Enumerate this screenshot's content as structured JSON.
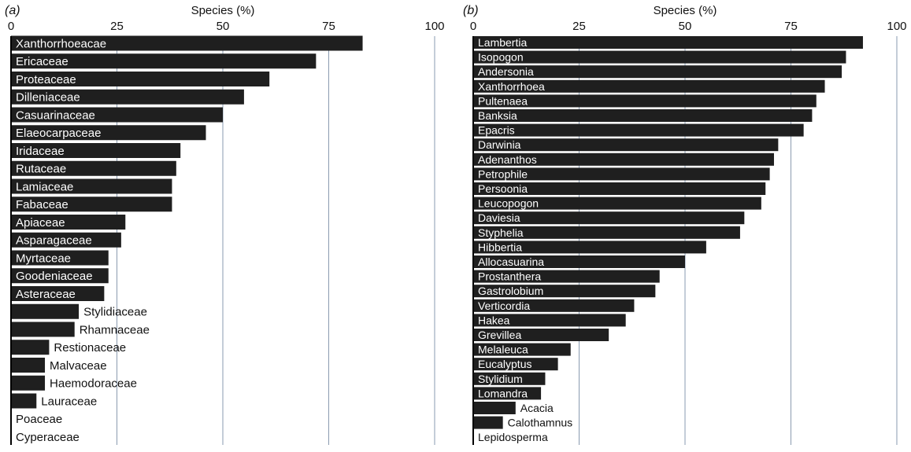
{
  "chart_data": [
    {
      "type": "bar",
      "orientation": "horizontal",
      "panel_label": "(a)",
      "xlabel": "Species (%)",
      "xlim": [
        0,
        100
      ],
      "xticks": [
        "0",
        "25",
        "50",
        "75",
        "100"
      ],
      "grid": "vertical",
      "categories": [
        "Xanthorrhoeacae",
        "Ericaceae",
        "Proteaceae",
        "Dilleniaceae",
        "Casuarinaceae",
        "Elaeocarpaceae",
        "Iridaceae",
        "Rutaceae",
        "Lamiaceae",
        "Fabaceae",
        "Apiaceae",
        "Asparagaceae",
        "Myrtaceae",
        "Goodeniaceae",
        "Asteraceae",
        "Stylidiaceae",
        "Rhamnaceae",
        "Restionaceae",
        "Malvaceae",
        "Haemodoraceae",
        "Lauraceae",
        "Poaceae",
        "Cyperaceae"
      ],
      "values": [
        83,
        72,
        61,
        55,
        50,
        46,
        40,
        39,
        38,
        38,
        27,
        26,
        23,
        23,
        22,
        16,
        15,
        9,
        8,
        8,
        6,
        0,
        0
      ],
      "colors": {
        "bar": "#1f1f1f",
        "grid": "#8a9bb0",
        "axis": "#000000"
      }
    },
    {
      "type": "bar",
      "orientation": "horizontal",
      "panel_label": "(b)",
      "xlabel": "Species (%)",
      "xlim": [
        0,
        100
      ],
      "xticks": [
        "0",
        "25",
        "50",
        "75",
        "100"
      ],
      "grid": "vertical",
      "categories": [
        "Lambertia",
        "Isopogon",
        "Andersonia",
        "Xanthorrhoea",
        "Pultenaea",
        "Banksia",
        "Epacris",
        "Darwinia",
        "Adenanthos",
        "Petrophile",
        "Persoonia",
        "Leucopogon",
        "Daviesia",
        "Styphelia",
        "Hibbertia",
        "Allocasuarina",
        "Prostanthera",
        "Gastrolobium",
        "Verticordia",
        "Hakea",
        "Grevillea",
        "Melaleuca",
        "Eucalyptus",
        "Stylidium",
        "Lomandra",
        "Acacia",
        "Calothamnus",
        "Lepidosperma"
      ],
      "values": [
        92,
        88,
        87,
        83,
        81,
        80,
        78,
        72,
        71,
        70,
        69,
        68,
        64,
        63,
        55,
        50,
        44,
        43,
        38,
        36,
        32,
        23,
        20,
        17,
        16,
        10,
        7,
        0
      ],
      "colors": {
        "bar": "#1f1f1f",
        "grid": "#8a9bb0",
        "axis": "#000000"
      }
    }
  ]
}
